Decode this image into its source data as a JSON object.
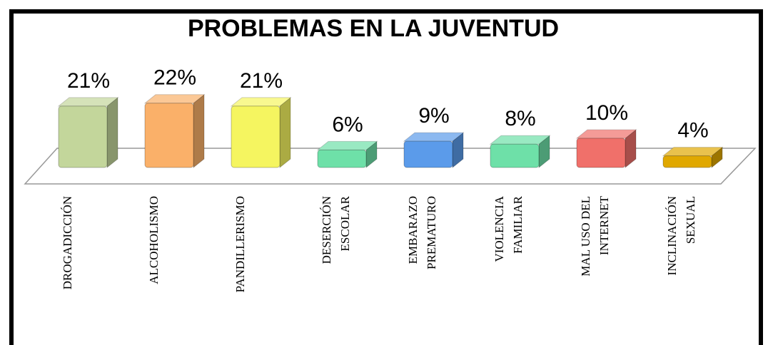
{
  "chart_data": {
    "type": "bar3d",
    "title": "PROBLEMAS EN LA JUVENTUD",
    "categories": [
      "DROGADICCIÓN",
      "ALCOHOLISMO",
      "PANDILLERISMO",
      "DESERCIÓN\nESCOLAR",
      "EMBARAZO\nPREMATURO",
      "VIOLENCIA\nFAMILIAR",
      "MAL USO DEL\nINTERNET",
      "INCLINACIÓN\nSEXUAL"
    ],
    "values": [
      21,
      22,
      21,
      6,
      9,
      8,
      10,
      4
    ],
    "value_labels": [
      "21%",
      "22%",
      "21%",
      "6%",
      "9%",
      "8%",
      "10%",
      "4%"
    ],
    "colors": [
      "#c3d69b",
      "#fab069",
      "#f5f560",
      "#6ee0a8",
      "#5b9bea",
      "#6ee0a8",
      "#f0706a",
      "#e0a800"
    ]
  }
}
